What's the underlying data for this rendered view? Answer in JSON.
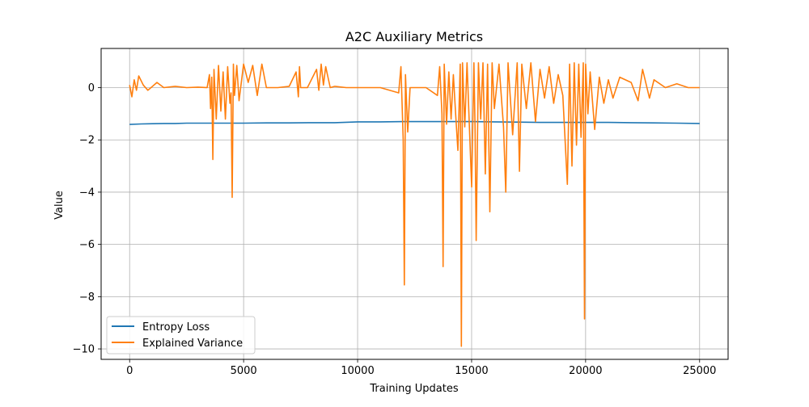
{
  "chart_data": {
    "type": "line",
    "title": "A2C Auxiliary Metrics",
    "xlabel": "Training Updates",
    "ylabel": "Value",
    "xlim": [
      -1250,
      26250
    ],
    "ylim": [
      -10.4,
      1.5
    ],
    "xticks": [
      0,
      5000,
      10000,
      15000,
      20000,
      25000
    ],
    "xtick_labels": [
      "0",
      "5000",
      "10000",
      "15000",
      "20000",
      "25000"
    ],
    "yticks": [
      0,
      -2,
      -4,
      -6,
      -8,
      -10
    ],
    "ytick_labels": [
      "0",
      "−2",
      "−4",
      "−6",
      "−8",
      "−10"
    ],
    "grid": true,
    "legend_position": "lower-left",
    "series": [
      {
        "name": "Entropy Loss",
        "color": "#1f77b4",
        "x": [
          0,
          500,
          1000,
          1500,
          2000,
          2500,
          3000,
          4000,
          5000,
          6000,
          7000,
          8000,
          9000,
          10000,
          11000,
          12000,
          13000,
          14000,
          15000,
          16000,
          17000,
          18000,
          19000,
          20000,
          21000,
          22000,
          23000,
          24000,
          25000
        ],
        "y": [
          -1.41,
          -1.39,
          -1.38,
          -1.37,
          -1.37,
          -1.36,
          -1.36,
          -1.36,
          -1.36,
          -1.35,
          -1.35,
          -1.34,
          -1.34,
          -1.31,
          -1.31,
          -1.3,
          -1.3,
          -1.3,
          -1.3,
          -1.31,
          -1.32,
          -1.33,
          -1.33,
          -1.33,
          -1.33,
          -1.34,
          -1.35,
          -1.36,
          -1.37
        ]
      },
      {
        "name": "Explained Variance",
        "color": "#ff7f0e",
        "x": [
          0,
          100,
          200,
          300,
          400,
          600,
          800,
          1200,
          1500,
          2000,
          2500,
          3000,
          3400,
          3500,
          3550,
          3600,
          3650,
          3700,
          3800,
          3900,
          4000,
          4100,
          4200,
          4300,
          4400,
          4450,
          4500,
          4550,
          4600,
          4700,
          4800,
          5000,
          5200,
          5400,
          5600,
          5800,
          6000,
          6200,
          6500,
          7000,
          7300,
          7400,
          7450,
          7500,
          7600,
          7800,
          8200,
          8300,
          8400,
          8500,
          8600,
          8800,
          9000,
          9500,
          10000,
          11000,
          11800,
          11900,
          12000,
          12050,
          12100,
          12200,
          12300,
          12500,
          13000,
          13500,
          13600,
          13700,
          13750,
          13800,
          13900,
          14000,
          14100,
          14200,
          14300,
          14400,
          14500,
          14550,
          14600,
          14700,
          14800,
          14900,
          15000,
          15100,
          15150,
          15200,
          15300,
          15400,
          15500,
          15600,
          15700,
          15800,
          15900,
          16000,
          16200,
          16400,
          16500,
          16600,
          16800,
          17000,
          17100,
          17200,
          17400,
          17600,
          17800,
          18000,
          18200,
          18400,
          18600,
          18800,
          19000,
          19200,
          19300,
          19400,
          19500,
          19600,
          19700,
          19800,
          19900,
          19950,
          20000,
          20100,
          20200,
          20400,
          20600,
          20800,
          21000,
          21200,
          21500,
          22000,
          22300,
          22500,
          22800,
          23000,
          23500,
          24000,
          24500,
          25000
        ],
        "y": [
          0.1,
          -0.35,
          0.3,
          -0.1,
          0.45,
          0.1,
          -0.1,
          0.2,
          0.0,
          0.05,
          0.0,
          0.02,
          0.0,
          0.5,
          -0.8,
          0.4,
          -2.75,
          0.7,
          -1.2,
          0.85,
          -0.9,
          0.6,
          -1.2,
          0.8,
          -0.6,
          -0.2,
          -4.2,
          0.9,
          -0.3,
          0.85,
          -0.5,
          0.9,
          0.2,
          0.85,
          -0.3,
          0.9,
          0.0,
          0.0,
          0.0,
          0.05,
          0.6,
          -0.35,
          0.8,
          0.0,
          0.0,
          0.0,
          0.7,
          -0.1,
          0.9,
          0.1,
          0.8,
          0.0,
          0.05,
          0.0,
          0.0,
          0.0,
          -0.2,
          0.8,
          -2.0,
          -7.55,
          0.5,
          -1.7,
          0.0,
          0.0,
          0.0,
          -0.3,
          0.8,
          -1.0,
          -6.85,
          0.9,
          -1.4,
          0.6,
          -1.2,
          0.5,
          -1.0,
          -2.4,
          0.9,
          -9.9,
          0.95,
          -1.5,
          0.95,
          -1.4,
          -3.8,
          0.95,
          -1.5,
          -5.85,
          0.95,
          -1.2,
          0.95,
          -3.3,
          0.9,
          -4.75,
          0.95,
          -0.8,
          0.9,
          -1.5,
          -4.0,
          0.95,
          -1.8,
          0.95,
          -3.2,
          0.9,
          -0.8,
          0.95,
          -1.3,
          0.7,
          -0.4,
          0.8,
          -0.6,
          0.5,
          -0.3,
          -3.7,
          0.9,
          -3.0,
          0.95,
          -2.2,
          0.9,
          -1.9,
          0.95,
          -8.85,
          0.9,
          -1.0,
          0.6,
          -1.6,
          0.4,
          -0.6,
          0.3,
          -0.4,
          0.4,
          0.2,
          -0.5,
          0.7,
          -0.4,
          0.3,
          0.0,
          0.15,
          0.0,
          0.0
        ]
      }
    ]
  }
}
